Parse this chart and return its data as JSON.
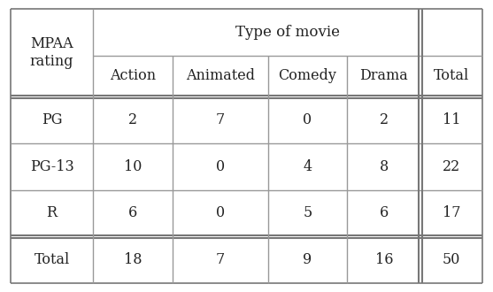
{
  "title": "Type of movie",
  "mpaa_label": "MPAA\nrating",
  "col_names": [
    "Action",
    "Animated",
    "Comedy",
    "Drama",
    "Total"
  ],
  "rows": [
    [
      "PG",
      "2",
      "7",
      "0",
      "2",
      "11"
    ],
    [
      "PG-13",
      "10",
      "0",
      "4",
      "8",
      "22"
    ],
    [
      "R",
      "6",
      "0",
      "5",
      "6",
      "17"
    ],
    [
      "Total",
      "18",
      "7",
      "9",
      "16",
      "50"
    ]
  ],
  "bg_color": "#ffffff",
  "text_color": "#222222",
  "thin_color": "#999999",
  "thick_color": "#777777",
  "font_size": 11.5,
  "fig_width": 5.57,
  "fig_height": 3.3,
  "dpi": 100
}
